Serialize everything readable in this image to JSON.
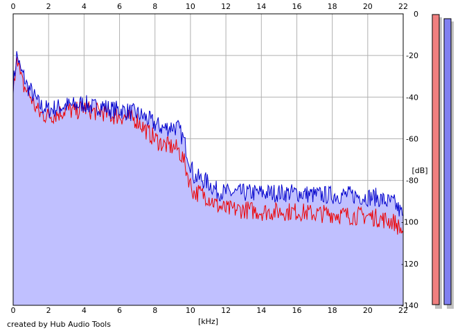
{
  "credit": "created by Hub Audio Tools",
  "colors": {
    "fill": "#c0c0ff",
    "blue": "#0000cc",
    "red": "#ee0000",
    "grid": "#b0b0b0",
    "meter_left": "#f08080",
    "meter_right": "#8080f0"
  },
  "chart_data": {
    "type": "line",
    "xlabel": "[kHz]",
    "ylabel": "[dB]",
    "xlim": [
      0,
      22
    ],
    "ylim": [
      -140,
      0
    ],
    "x_ticks": [
      "0",
      "2",
      "4",
      "6",
      "8",
      "10",
      "12",
      "14",
      "16",
      "18",
      "20",
      "22"
    ],
    "y_ticks": [
      "0",
      "-20",
      "-40",
      "-60",
      "-80",
      "-100",
      "-120",
      "-140"
    ],
    "grid": true,
    "x": [
      0,
      0.1,
      0.2,
      0.3,
      0.4,
      0.6,
      0.8,
      1.0,
      1.2,
      1.5,
      2.0,
      2.5,
      3.0,
      3.5,
      4.0,
      4.5,
      5.0,
      5.5,
      6.0,
      6.5,
      7.0,
      7.5,
      8.0,
      8.5,
      9.0,
      9.3,
      9.6,
      9.8,
      10.0,
      10.2,
      10.5,
      11.0,
      11.5,
      12.0,
      13.0,
      14.0,
      15.0,
      16.0,
      17.0,
      18.0,
      19.0,
      20.0,
      20.5,
      21.0,
      21.5,
      22.0
    ],
    "series": [
      {
        "values": [
          -34,
          -28,
          -20,
          -22,
          -27,
          -30,
          -35,
          -37,
          -40,
          -44,
          -46,
          -45,
          -44,
          -44,
          -43,
          -45,
          -44,
          -46,
          -46,
          -47,
          -48,
          -50,
          -53,
          -55,
          -54,
          -55,
          -60,
          -66,
          -72,
          -78,
          -79,
          -81,
          -85,
          -86,
          -86,
          -86,
          -86,
          -86,
          -87,
          -87,
          -87,
          -88,
          -88,
          -90,
          -91,
          -97
        ]
      },
      {
        "values": [
          -40,
          -28,
          -18,
          -24,
          -30,
          -35,
          -37,
          -40,
          -44,
          -48,
          -49,
          -48,
          -46,
          -47,
          -45,
          -47,
          -47,
          -49,
          -49,
          -50,
          -51,
          -56,
          -60,
          -63,
          -64,
          -65,
          -70,
          -76,
          -82,
          -86,
          -86,
          -88,
          -92,
          -94,
          -94,
          -95,
          -95,
          -95,
          -96,
          -96,
          -97,
          -97,
          -98,
          -99,
          -100,
          -105
        ]
      }
    ]
  }
}
